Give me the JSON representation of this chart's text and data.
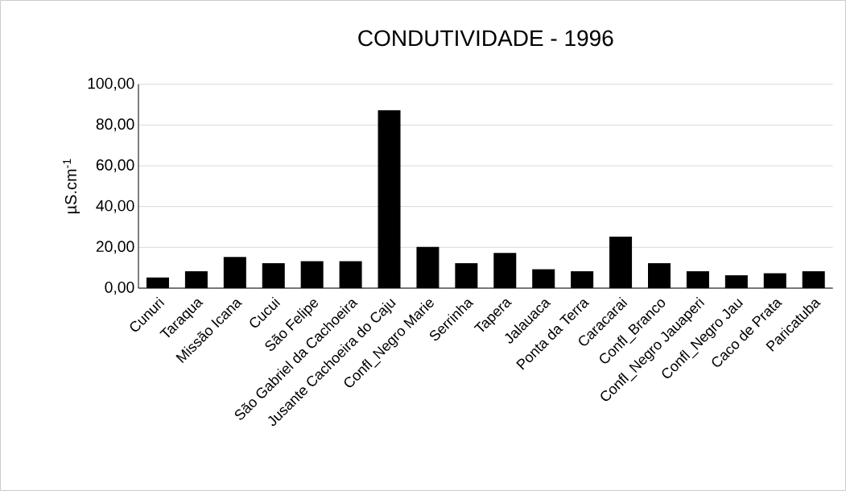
{
  "chart_data": {
    "type": "bar",
    "title": "CONDUTIVIDADE - 1996",
    "ylabel": "µS.cm$^{-1}$",
    "categories": [
      "Cunuri",
      "Taraqua",
      "Missão Icana",
      "Cucui",
      "São Felipe",
      "São Gabriel da Cachoeira",
      "Jusante Cachoeira do Caju",
      "Confl_Negro Marie",
      "Serrinha",
      "Tapera",
      "Jalauaca",
      "Ponta da Terra",
      "Caracarai",
      "Confl_Branco",
      "Confl_Negro Jauaperi",
      "Confl_Negro Jau",
      "Caco de Prata",
      "Paricatuba"
    ],
    "values": [
      5,
      8,
      15,
      12,
      13,
      13,
      87,
      20,
      12,
      17,
      9,
      8,
      25,
      12,
      8,
      6,
      7,
      8
    ],
    "color": "#000000",
    "ylim": [
      0,
      100
    ],
    "yticks": [
      {
        "value": 0,
        "label": "0,00"
      },
      {
        "value": 20,
        "label": "20,00"
      },
      {
        "value": 40,
        "label": "40,00"
      },
      {
        "value": 60,
        "label": "60,00"
      },
      {
        "value": 80,
        "label": "80,00"
      },
      {
        "value": 100,
        "label": "100,00"
      }
    ],
    "grid": "y"
  }
}
